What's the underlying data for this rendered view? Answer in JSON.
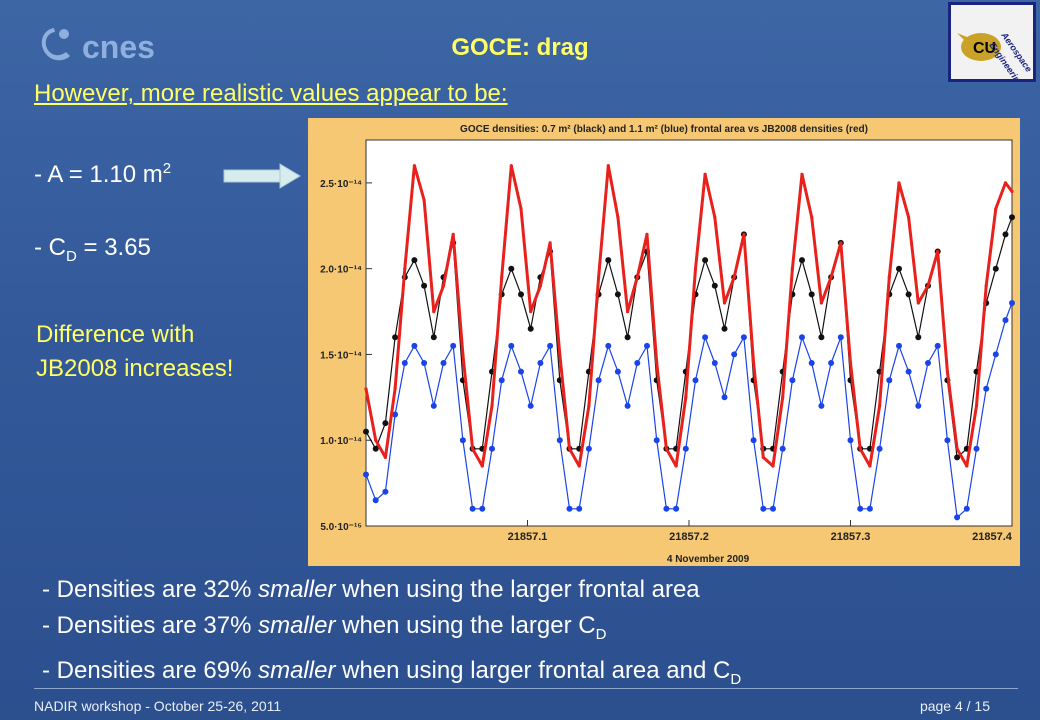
{
  "slide": {
    "logo_text": "cnes",
    "title": "GOCE: drag",
    "subtitle": "However, more realistic values appear to be:",
    "param_a_prefix": "- A = 1.10 m",
    "param_a_sup": "2",
    "param_cd_prefix": "- C",
    "param_cd_sub": "D",
    "param_cd_suffix": " = 3.65",
    "diff_line1": "Difference with",
    "diff_line2": "JB2008 increases!",
    "bullet1_a": "- Densities are 32% ",
    "bullet1_em": "smaller",
    "bullet1_b": " when using the larger frontal area",
    "bullet2_a": "- Densities are 37% ",
    "bullet2_em": "smaller",
    "bullet2_b": " when using the larger C",
    "bullet2_sub": "D",
    "bullet3_a": "- Densities are 69% ",
    "bullet3_em": "smaller",
    "bullet3_b": " when using larger frontal area and C",
    "bullet3_sub": "D",
    "footer_left": "NADIR workshop  -  October 25-26, 2011",
    "footer_right": "page 4 / 15",
    "aero_logo_text_1": "Aerospace",
    "aero_logo_text_2": "Engineering"
  },
  "colors": {
    "title_yellow": "#ffff66",
    "chart_frame": "#f7c873",
    "series_jb2008": "#e8211c",
    "series_black": "#111111",
    "series_blue": "#1a44e8"
  },
  "chart_data": {
    "type": "line",
    "title": "GOCE densities: 0.7 m² (black) and 1.1 m² (blue) frontal area vs JB2008 densities (red)",
    "xlabel": "4 November 2009",
    "ylabel": "",
    "xlim": [
      21857.0,
      21857.4
    ],
    "ylim": [
      5e-15,
      2.75e-14
    ],
    "x_ticks": [
      21857.1,
      21857.2,
      21857.3,
      21857.4
    ],
    "x_tick_labels": [
      "21857.1",
      "21857.2",
      "21857.3",
      "21857.4"
    ],
    "y_ticks": [
      5e-15,
      1e-14,
      1.5e-14,
      2e-14,
      2.5e-14
    ],
    "y_tick_labels": [
      "5.0·10⁻¹⁵",
      "1.0·10⁻¹⁴",
      "1.5·10⁻¹⁴",
      "2.0·10⁻¹⁴",
      "2.5·10⁻¹⁴"
    ],
    "grid": false,
    "series": [
      {
        "name": "JB2008",
        "color": "#e8211c",
        "x": [
          21857.0,
          21857.006,
          21857.012,
          21857.018,
          21857.024,
          21857.03,
          21857.036,
          21857.042,
          21857.048,
          21857.054,
          21857.06,
          21857.066,
          21857.072,
          21857.078,
          21857.084,
          21857.09,
          21857.096,
          21857.102,
          21857.108,
          21857.114,
          21857.12,
          21857.126,
          21857.132,
          21857.138,
          21857.144,
          21857.15,
          21857.156,
          21857.162,
          21857.168,
          21857.174,
          21857.18,
          21857.186,
          21857.192,
          21857.198,
          21857.204,
          21857.21,
          21857.216,
          21857.222,
          21857.228,
          21857.234,
          21857.24,
          21857.246,
          21857.252,
          21857.258,
          21857.264,
          21857.27,
          21857.276,
          21857.282,
          21857.288,
          21857.294,
          21857.3,
          21857.306,
          21857.312,
          21857.318,
          21857.324,
          21857.33,
          21857.336,
          21857.342,
          21857.348,
          21857.354,
          21857.36,
          21857.366,
          21857.372,
          21857.378,
          21857.384,
          21857.39,
          21857.396,
          21857.4
        ],
        "y": [
          1.3e-14,
          1e-14,
          9e-15,
          1.3e-14,
          2e-14,
          2.6e-14,
          2.4e-14,
          1.75e-14,
          1.9e-14,
          2.2e-14,
          1.5e-14,
          9.5e-15,
          8.5e-15,
          1.2e-14,
          1.95e-14,
          2.6e-14,
          2.35e-14,
          1.75e-14,
          1.9e-14,
          2.15e-14,
          1.5e-14,
          9.5e-15,
          8.5e-15,
          1.2e-14,
          1.95e-14,
          2.6e-14,
          2.3e-14,
          1.75e-14,
          1.95e-14,
          2.2e-14,
          1.45e-14,
          9.5e-15,
          8.5e-15,
          1.25e-14,
          2e-14,
          2.55e-14,
          2.3e-14,
          1.8e-14,
          1.95e-14,
          2.2e-14,
          1.45e-14,
          9e-15,
          8.5e-15,
          1.25e-14,
          2e-14,
          2.55e-14,
          2.3e-14,
          1.8e-14,
          1.95e-14,
          2.15e-14,
          1.45e-14,
          9.5e-15,
          8.5e-15,
          1.2e-14,
          1.95e-14,
          2.5e-14,
          2.3e-14,
          1.8e-14,
          1.9e-14,
          2.1e-14,
          1.4e-14,
          9.5e-15,
          8.5e-15,
          1.2e-14,
          1.9e-14,
          2.35e-14,
          2.5e-14,
          2.45e-14
        ]
      },
      {
        "name": "0.7 m² (black)",
        "color": "#111111",
        "x": [
          21857.0,
          21857.006,
          21857.012,
          21857.018,
          21857.024,
          21857.03,
          21857.036,
          21857.042,
          21857.048,
          21857.054,
          21857.06,
          21857.066,
          21857.072,
          21857.078,
          21857.084,
          21857.09,
          21857.096,
          21857.102,
          21857.108,
          21857.114,
          21857.12,
          21857.126,
          21857.132,
          21857.138,
          21857.144,
          21857.15,
          21857.156,
          21857.162,
          21857.168,
          21857.174,
          21857.18,
          21857.186,
          21857.192,
          21857.198,
          21857.204,
          21857.21,
          21857.216,
          21857.222,
          21857.228,
          21857.234,
          21857.24,
          21857.246,
          21857.252,
          21857.258,
          21857.264,
          21857.27,
          21857.276,
          21857.282,
          21857.288,
          21857.294,
          21857.3,
          21857.306,
          21857.312,
          21857.318,
          21857.324,
          21857.33,
          21857.336,
          21857.342,
          21857.348,
          21857.354,
          21857.36,
          21857.366,
          21857.372,
          21857.378,
          21857.384,
          21857.39,
          21857.396,
          21857.4
        ],
        "y": [
          1.05e-14,
          9.5e-15,
          1.1e-14,
          1.6e-14,
          1.95e-14,
          2.05e-14,
          1.9e-14,
          1.6e-14,
          1.95e-14,
          2.15e-14,
          1.35e-14,
          9.5e-15,
          9.5e-15,
          1.4e-14,
          1.85e-14,
          2e-14,
          1.85e-14,
          1.65e-14,
          1.95e-14,
          2.1e-14,
          1.35e-14,
          9.5e-15,
          9.5e-15,
          1.4e-14,
          1.85e-14,
          2.05e-14,
          1.85e-14,
          1.6e-14,
          1.95e-14,
          2.1e-14,
          1.35e-14,
          9.5e-15,
          9.5e-15,
          1.4e-14,
          1.85e-14,
          2.05e-14,
          1.9e-14,
          1.65e-14,
          1.95e-14,
          2.2e-14,
          1.35e-14,
          9.5e-15,
          9.5e-15,
          1.4e-14,
          1.85e-14,
          2.05e-14,
          1.85e-14,
          1.6e-14,
          1.95e-14,
          2.15e-14,
          1.35e-14,
          9.5e-15,
          9.5e-15,
          1.4e-14,
          1.85e-14,
          2e-14,
          1.85e-14,
          1.6e-14,
          1.9e-14,
          2.1e-14,
          1.35e-14,
          9e-15,
          9.5e-15,
          1.4e-14,
          1.8e-14,
          2e-14,
          2.2e-14,
          2.3e-14
        ]
      },
      {
        "name": "1.1 m² (blue)",
        "color": "#1a44e8",
        "x": [
          21857.0,
          21857.006,
          21857.012,
          21857.018,
          21857.024,
          21857.03,
          21857.036,
          21857.042,
          21857.048,
          21857.054,
          21857.06,
          21857.066,
          21857.072,
          21857.078,
          21857.084,
          21857.09,
          21857.096,
          21857.102,
          21857.108,
          21857.114,
          21857.12,
          21857.126,
          21857.132,
          21857.138,
          21857.144,
          21857.15,
          21857.156,
          21857.162,
          21857.168,
          21857.174,
          21857.18,
          21857.186,
          21857.192,
          21857.198,
          21857.204,
          21857.21,
          21857.216,
          21857.222,
          21857.228,
          21857.234,
          21857.24,
          21857.246,
          21857.252,
          21857.258,
          21857.264,
          21857.27,
          21857.276,
          21857.282,
          21857.288,
          21857.294,
          21857.3,
          21857.306,
          21857.312,
          21857.318,
          21857.324,
          21857.33,
          21857.336,
          21857.342,
          21857.348,
          21857.354,
          21857.36,
          21857.366,
          21857.372,
          21857.378,
          21857.384,
          21857.39,
          21857.396,
          21857.4
        ],
        "y": [
          8e-15,
          6.5e-15,
          7e-15,
          1.15e-14,
          1.45e-14,
          1.55e-14,
          1.45e-14,
          1.2e-14,
          1.45e-14,
          1.55e-14,
          1e-14,
          6e-15,
          6e-15,
          9.5e-15,
          1.35e-14,
          1.55e-14,
          1.4e-14,
          1.2e-14,
          1.45e-14,
          1.55e-14,
          1e-14,
          6e-15,
          6e-15,
          9.5e-15,
          1.35e-14,
          1.55e-14,
          1.4e-14,
          1.2e-14,
          1.45e-14,
          1.55e-14,
          1e-14,
          6e-15,
          6e-15,
          9.5e-15,
          1.35e-14,
          1.6e-14,
          1.45e-14,
          1.25e-14,
          1.5e-14,
          1.6e-14,
          1e-14,
          6e-15,
          6e-15,
          9.5e-15,
          1.35e-14,
          1.6e-14,
          1.45e-14,
          1.2e-14,
          1.45e-14,
          1.6e-14,
          1e-14,
          6e-15,
          6e-15,
          9.5e-15,
          1.35e-14,
          1.55e-14,
          1.4e-14,
          1.2e-14,
          1.45e-14,
          1.55e-14,
          1e-14,
          5.5e-15,
          6e-15,
          9.5e-15,
          1.3e-14,
          1.5e-14,
          1.7e-14,
          1.8e-14
        ]
      }
    ]
  }
}
